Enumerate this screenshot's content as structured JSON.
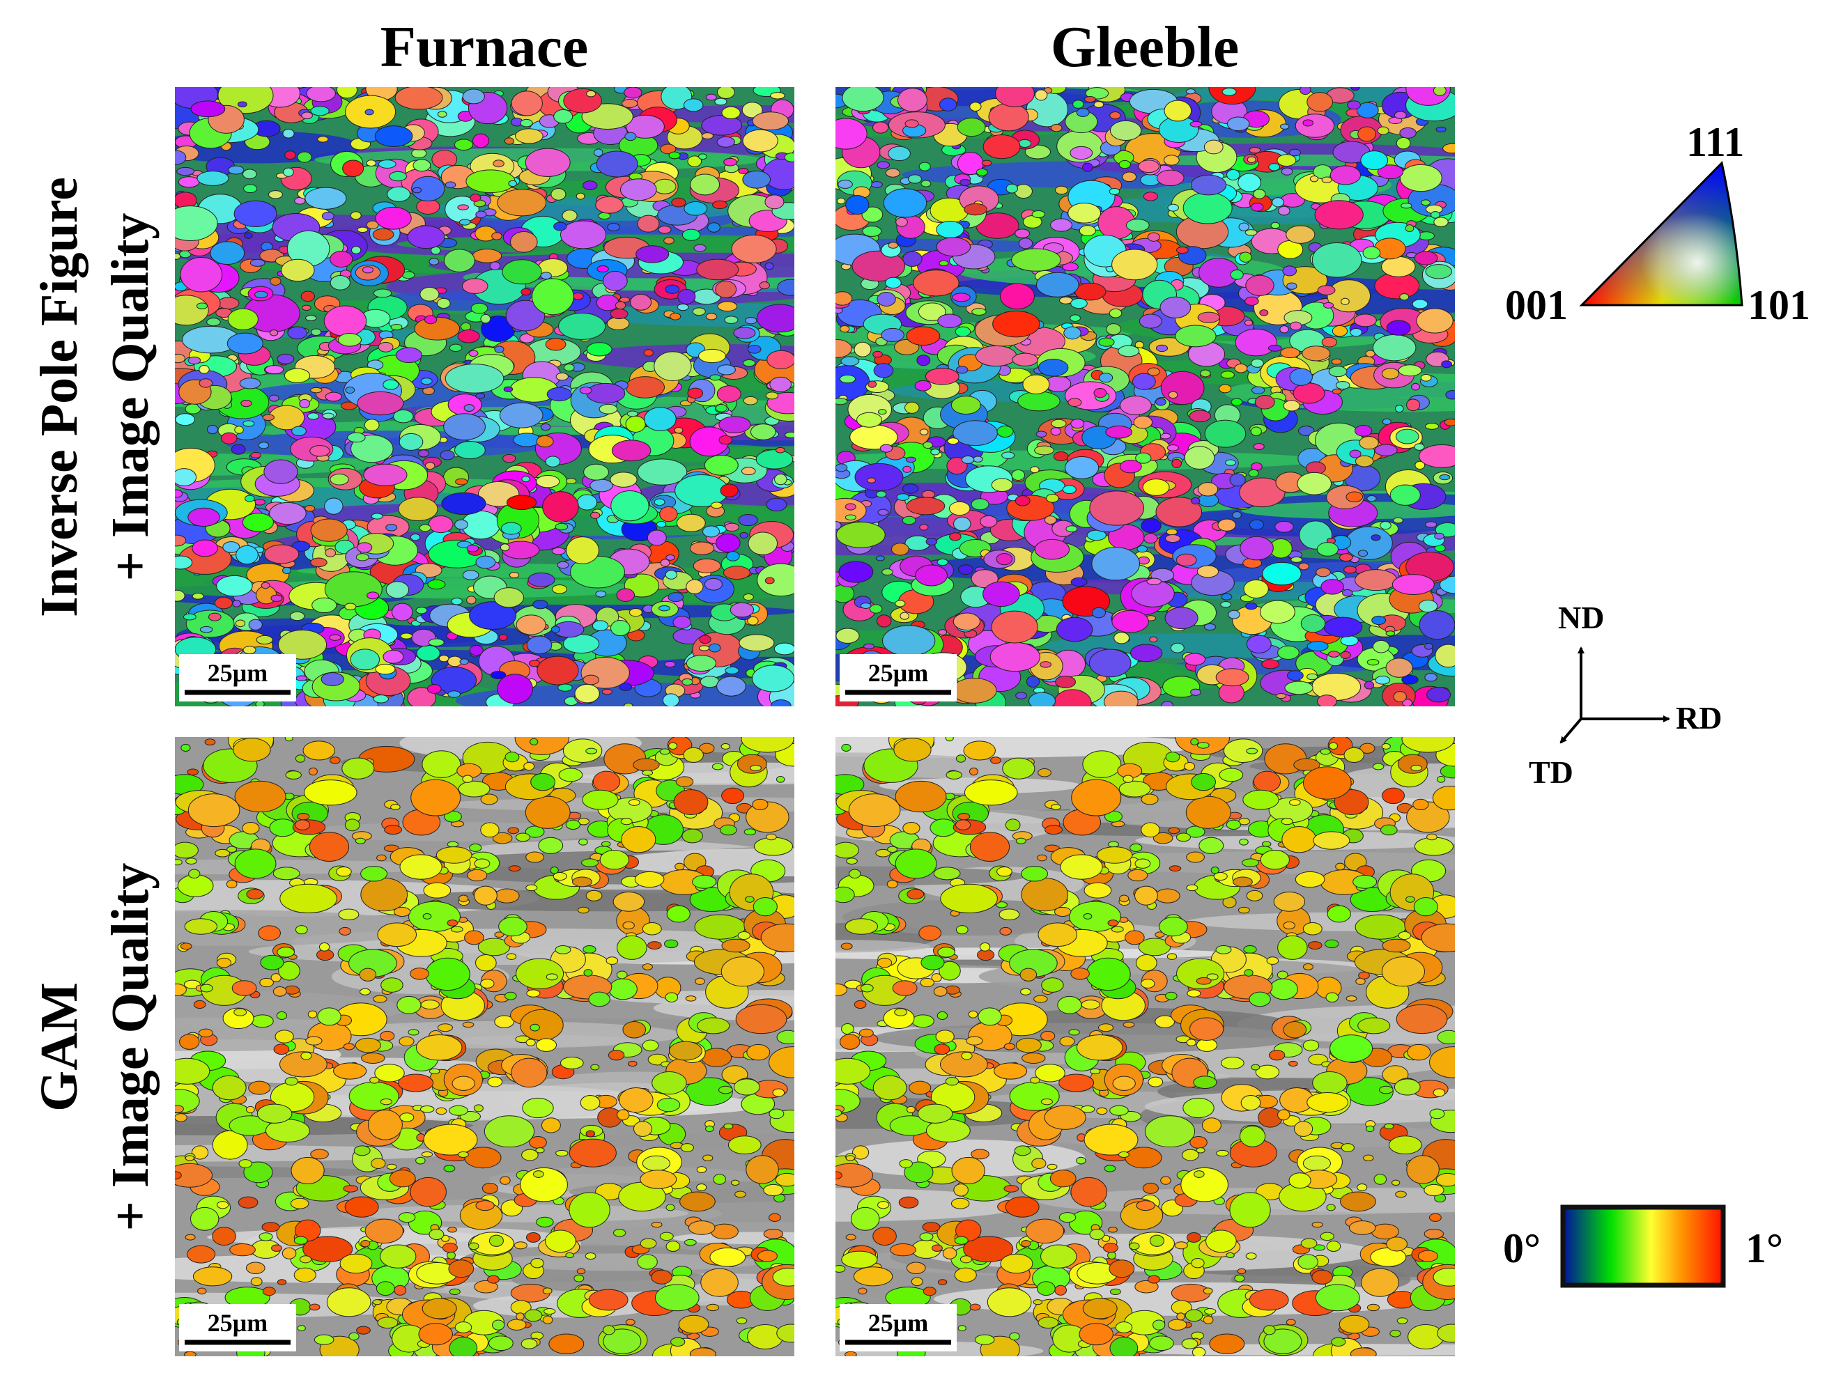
{
  "columns": [
    "Furnace",
    "Gleeble"
  ],
  "rows": [
    {
      "lines": [
        "Inverse Pole Figure",
        "+ Image Quality"
      ]
    },
    {
      "lines": [
        "GAM",
        "+ Image Quality"
      ]
    }
  ],
  "panels": [
    {
      "scale_bar": "25μm"
    },
    {
      "scale_bar": "25μm"
    },
    {
      "scale_bar": "25μm"
    },
    {
      "scale_bar": "25μm"
    }
  ],
  "ipf_key": {
    "labels": [
      "001",
      "101",
      "111"
    ]
  },
  "sample_axes": {
    "labels": [
      "ND",
      "RD",
      "TD"
    ]
  },
  "gam_key": {
    "labels": [
      "0°",
      "1°"
    ]
  }
}
